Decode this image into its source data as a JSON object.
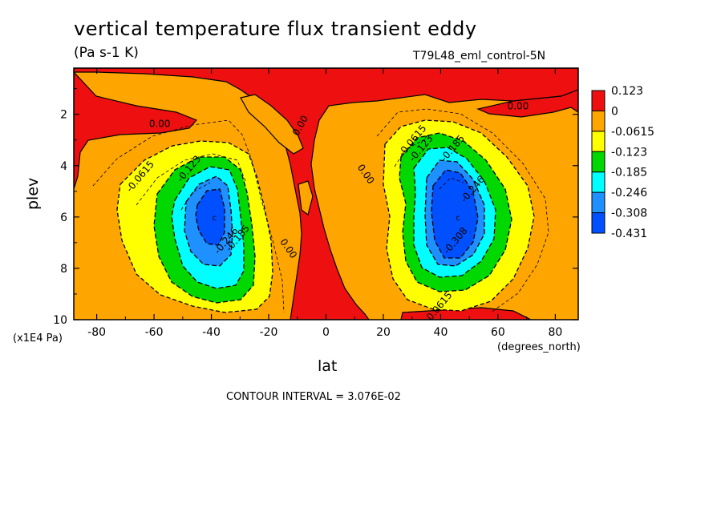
{
  "chart_data": {
    "type": "heatmap",
    "title": "vertical temperature flux transient eddy",
    "units": "(Pa s-1 K)",
    "run_label": "T79L48_eml_control-5N",
    "xlabel": "lat",
    "x_unit": "(degrees_north)",
    "ylabel": "plev",
    "y_unit": "(x1E4 Pa)",
    "footer": "CONTOUR INTERVAL = 3.076E-02",
    "xlim": [
      -88,
      88
    ],
    "ylim": [
      0.2,
      10
    ],
    "y_inverted": true,
    "x_ticks": [
      "-80",
      "-60",
      "-40",
      "-20",
      "0",
      "20",
      "40",
      "60",
      "80"
    ],
    "y_ticks": [
      "2",
      "4",
      "6",
      "8",
      "10"
    ],
    "color_levels": [
      {
        "label": "0.123",
        "color": "#ee1010"
      },
      {
        "label": "0",
        "color": "#ffa500"
      },
      {
        "label": "-0.0615",
        "color": "#ffff00"
      },
      {
        "label": "-0.123",
        "color": "#00d800"
      },
      {
        "label": "-0.185",
        "color": "#00ffff"
      },
      {
        "label": "-0.246",
        "color": "#1e90ff"
      },
      {
        "label": "-0.308",
        "color": "#0050ff"
      },
      {
        "label": "-0.431",
        "color": "#0050ff"
      }
    ],
    "extrema": [
      {
        "name": "south-minimum",
        "lat": -39,
        "plev": 6.0,
        "value": -0.36
      },
      {
        "name": "north-minimum",
        "lat": 46,
        "plev": 6.0,
        "value": -0.42
      }
    ],
    "contour_labels": [
      {
        "text": "-0.0615",
        "lat": -64,
        "plev": 4.5
      },
      {
        "text": "-0.123",
        "lat": -47,
        "plev": 4.2
      },
      {
        "text": "-0.246",
        "lat": -34,
        "plev": 7.0
      },
      {
        "text": "-0.185",
        "lat": -30,
        "plev": 6.9
      },
      {
        "text": "0.00",
        "lat": -58,
        "plev": 2.5
      },
      {
        "text": "0.00",
        "lat": -8,
        "plev": 2.5
      },
      {
        "text": "0.00",
        "lat": 13,
        "plev": 4.4
      },
      {
        "text": "0.00",
        "lat": -14,
        "plev": 7.3
      },
      {
        "text": "0.00",
        "lat": 67,
        "plev": 1.8
      },
      {
        "text": "-0.0615",
        "lat": 31,
        "plev": 3.1
      },
      {
        "text": "-0.123",
        "lat": 34,
        "plev": 3.4
      },
      {
        "text": "-0.185",
        "lat": 45,
        "plev": 3.4
      },
      {
        "text": "-0.246",
        "lat": 52,
        "plev": 5.0
      },
      {
        "text": "-0.308",
        "lat": 46,
        "plev": 7.0
      },
      {
        "text": "-0.0615",
        "lat": 40,
        "plev": 9.6
      }
    ]
  }
}
